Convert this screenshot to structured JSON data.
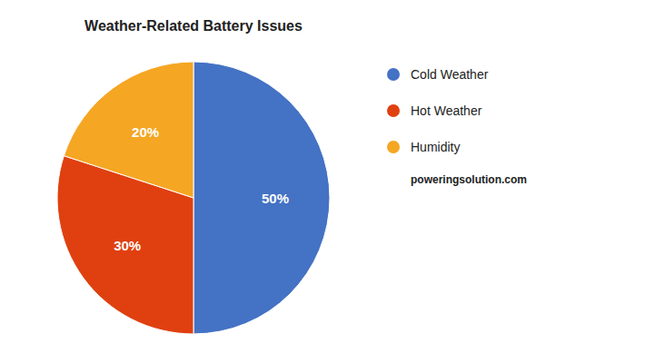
{
  "chart_data": {
    "type": "pie",
    "title": "Weather-Related Battery Issues",
    "categories": [
      "Cold Weather",
      "Hot Weather",
      "Humidity"
    ],
    "values": [
      50,
      30,
      20
    ],
    "value_labels": [
      "50%",
      "30%",
      "20%"
    ],
    "colors": [
      "#4472C4",
      "#E04010",
      "#F5A623"
    ],
    "data_labels": true,
    "legend": "right",
    "annotations": [
      "poweringsolution.com"
    ]
  }
}
